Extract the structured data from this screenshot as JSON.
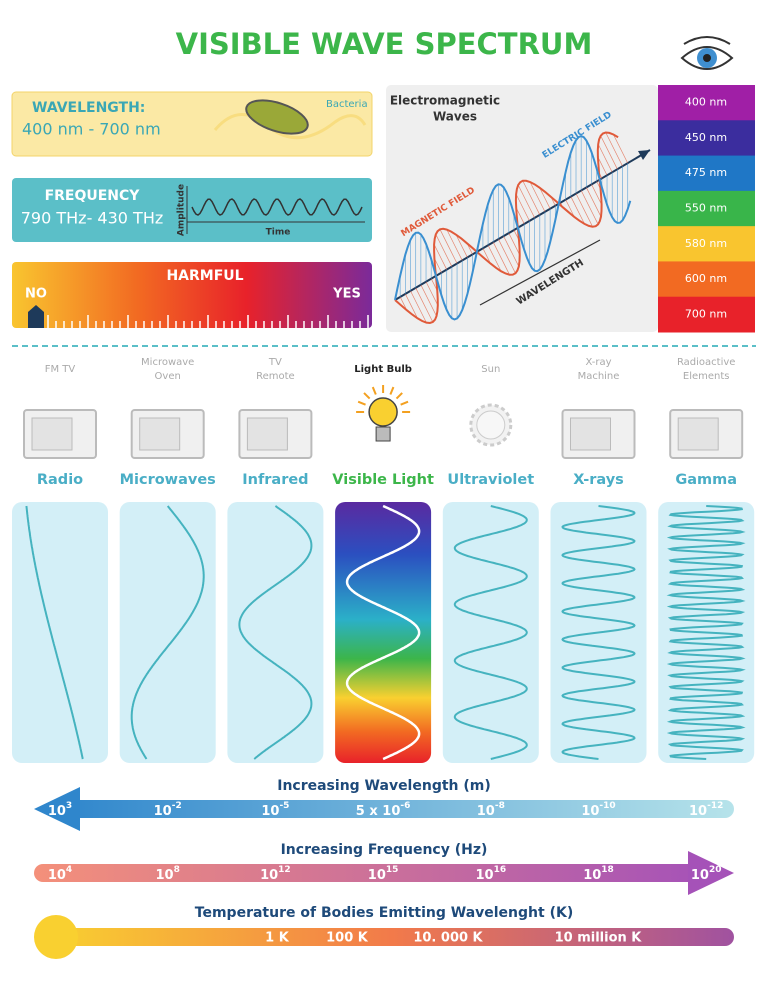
{
  "title": "VISIBLE WAVE SPECTRUM",
  "wavelength_box": {
    "label": "WAVELENGTH:",
    "range": "400 nm - 700 nm",
    "bacteria": "Bacteria"
  },
  "frequency_box": {
    "label": "FREQUENCY",
    "range": "790 THz- 430 THz",
    "amplitude": "Amplitude",
    "time": "Time"
  },
  "harmful_box": {
    "label": "HARMFUL",
    "no": "NO",
    "yes": "YES"
  },
  "em_panel": {
    "title_lines": [
      "Electromagnetic",
      "Waves"
    ],
    "electric_field": "ELECTRIC FIELD",
    "magnetic_field": "MAGNETIC FIELD",
    "wavelength": "WAVELENGTH"
  },
  "color_bands": [
    {
      "label": "400 nm",
      "color": "#a01fa6"
    },
    {
      "label": "450 nm",
      "color": "#3b2d9e"
    },
    {
      "label": "475 nm",
      "color": "#1f77c6"
    },
    {
      "label": "550 nm",
      "color": "#39b54a"
    },
    {
      "label": "580 nm",
      "color": "#f9c52f"
    },
    {
      "label": "600 nm",
      "color": "#f26a22"
    },
    {
      "label": "700 nm",
      "color": "#e8222a"
    }
  ],
  "spectrum": [
    {
      "source": [
        "FM  TV"
      ],
      "name": "Radio"
    },
    {
      "source": [
        "Microwave",
        "Oven"
      ],
      "name": "Microwaves"
    },
    {
      "source": [
        "TV",
        "Remote"
      ],
      "name": "Infrared"
    },
    {
      "source": [
        "Light Bulb"
      ],
      "name": "Visible Light"
    },
    {
      "source": [
        "Sun"
      ],
      "name": "Ultraviolet"
    },
    {
      "source": [
        "X-ray",
        "Machine"
      ],
      "name": "X-rays"
    },
    {
      "source": [
        "Radioactive",
        "Elements"
      ],
      "name": "Gamma"
    }
  ],
  "scales": {
    "wavelength": {
      "title": "Increasing Wavelength (m)",
      "ticks": [
        {
          "base": "10",
          "exp": "3"
        },
        {
          "base": "10",
          "exp": "-2"
        },
        {
          "base": "10",
          "exp": "-5"
        },
        {
          "base": "5 x 10",
          "exp": "-6"
        },
        {
          "base": "10",
          "exp": "-8"
        },
        {
          "base": "10",
          "exp": "-10"
        },
        {
          "base": "10",
          "exp": "-12"
        }
      ]
    },
    "frequency": {
      "title": "Increasing Frequency (Hz)",
      "ticks": [
        {
          "base": "10",
          "exp": "4"
        },
        {
          "base": "10",
          "exp": "8"
        },
        {
          "base": "10",
          "exp": "12"
        },
        {
          "base": "10",
          "exp": "15"
        },
        {
          "base": "10",
          "exp": "16"
        },
        {
          "base": "10",
          "exp": "18"
        },
        {
          "base": "10",
          "exp": "20"
        }
      ]
    },
    "temperature": {
      "title": "Temperature of Bodies Emitting Wavelenght (K)",
      "ticks": [
        "1 K",
        "100 K",
        "10. 000 K",
        "10 million K"
      ]
    }
  }
}
